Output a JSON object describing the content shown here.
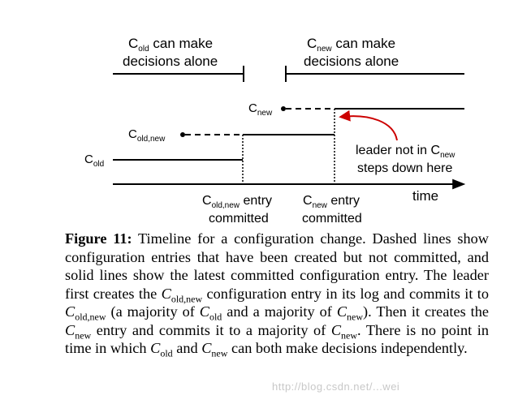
{
  "diagram": {
    "left_region": {
      "line1_base": "C",
      "line1_sub": "old",
      "line1_rest": " can make",
      "line2": "decisions alone"
    },
    "right_region": {
      "line1_base": "C",
      "line1_sub": "new",
      "line1_rest": " can make",
      "line2": "decisions alone"
    },
    "c_new": {
      "base": "C",
      "sub": "new"
    },
    "c_old_new": {
      "base": "C",
      "sub": "old,new"
    },
    "c_old": {
      "base": "C",
      "sub": "old"
    },
    "annotation": {
      "line1": "leader not in C",
      "line1_sub": "new",
      "line2": "steps down here"
    },
    "entry1": {
      "base": "C",
      "sub": "old,new",
      "rest": " entry",
      "line2": "committed"
    },
    "entry2": {
      "base": "C",
      "sub": "new",
      "rest": " entry",
      "line2": "committed"
    },
    "axis_label": "time",
    "arrow_color": "#cc0000"
  },
  "caption": {
    "fig_label": "Figure 11:",
    "s1": " Timeline for a configuration change. Dashed lines show configuration entries that have been created but not committed, and solid lines show the latest committed configuration entry. The leader first creates the ",
    "s2": " configuration entry in its log and commits it to ",
    "s3": " (a majority of ",
    "s4": " and a majority of ",
    "s5": "). Then it creates the ",
    "s6": " entry and commits it to a majority of ",
    "s7": ". There is no point in time in which ",
    "s8": " and ",
    "s9": " can both make decisions independently.",
    "c": "C",
    "old": "old",
    "new": "new",
    "oldnew": "old,new"
  },
  "watermark": "http://blog.csdn.net/...wei"
}
